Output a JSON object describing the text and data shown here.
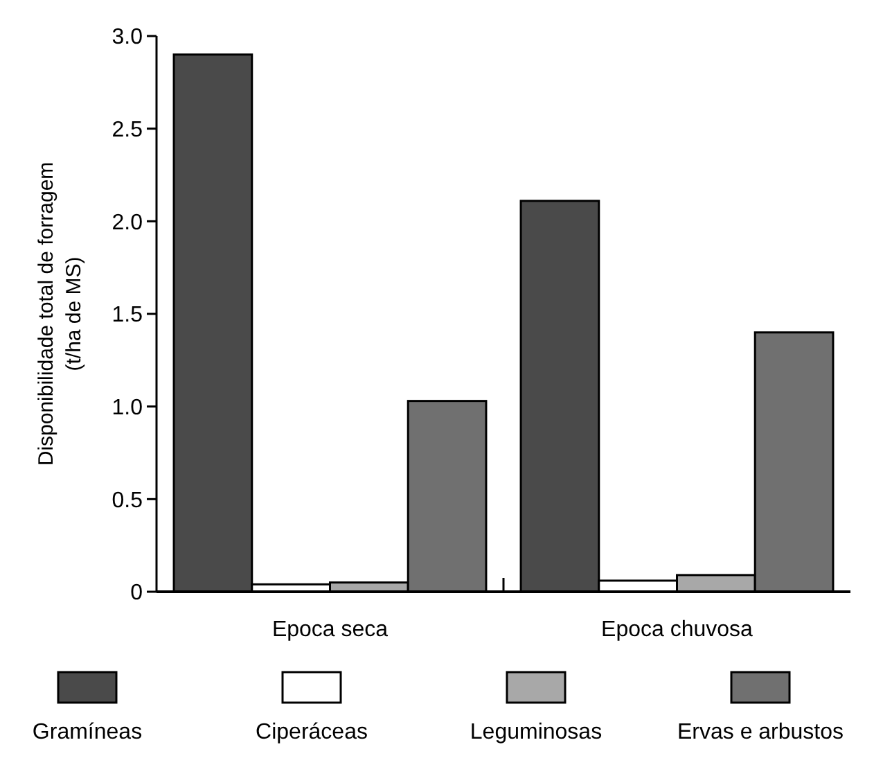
{
  "chart_data": {
    "type": "bar",
    "ylabel": "Disponibilidade total de forragem\n(t/ha de MS)",
    "categories": [
      "Epoca seca",
      "Epoca chuvosa"
    ],
    "series": [
      {
        "name": "Gramíneas",
        "color": "#4a4a4a",
        "values": [
          2.9,
          2.11
        ]
      },
      {
        "name": "Ciperáceas",
        "color": "#ffffff",
        "values": [
          0.04,
          0.06
        ]
      },
      {
        "name": "Leguminosas",
        "color": "#a8a8a8",
        "values": [
          0.05,
          0.09
        ]
      },
      {
        "name": "Ervas e arbustos",
        "color": "#707070",
        "values": [
          1.03,
          1.4
        ]
      }
    ],
    "ylim": [
      0,
      3
    ],
    "yticks": [
      {
        "value": 0,
        "label": "0"
      },
      0.5,
      {
        "value": 1,
        "label": "1.0"
      },
      1.5,
      {
        "value": 2,
        "label": "2.0"
      },
      2.5,
      {
        "value": 3,
        "label": "3.0"
      }
    ],
    "grid": false,
    "legend": "bottom"
  }
}
